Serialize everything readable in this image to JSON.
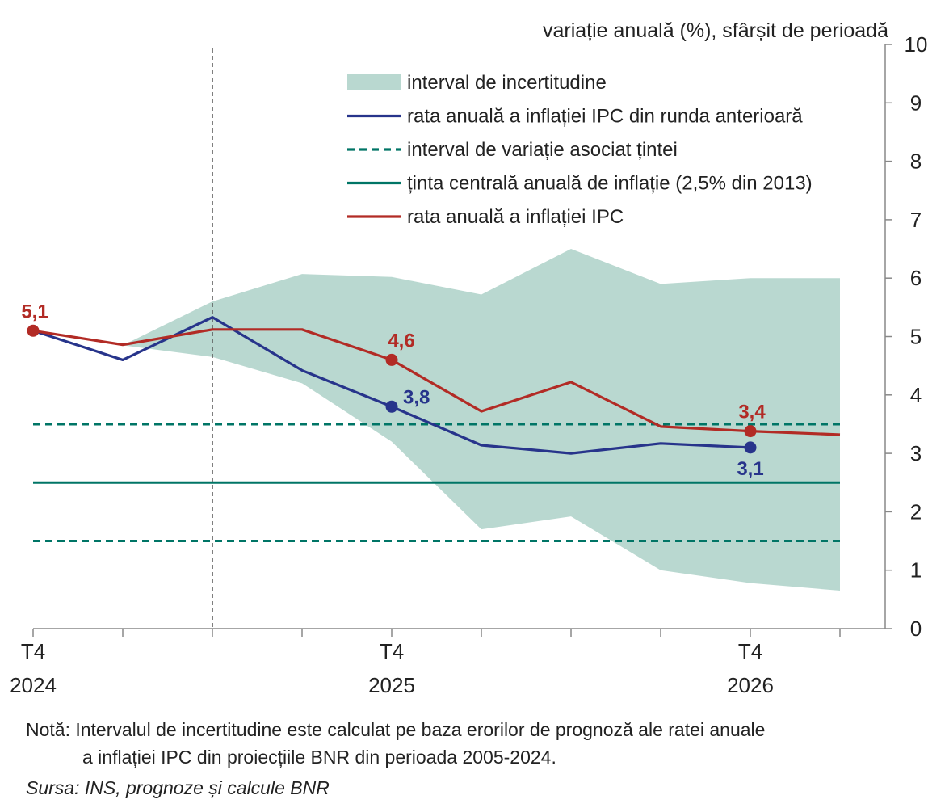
{
  "chart_data": {
    "type": "line",
    "ylabel": "variație anuală (%), sfârșit de perioadă",
    "ylim": [
      0,
      10
    ],
    "y_ticks": [
      "0",
      "1",
      "2",
      "3",
      "4",
      "5",
      "6",
      "7",
      "8",
      "9",
      "10"
    ],
    "x_ticks": [
      {
        "quarter": "T4",
        "year": "2024"
      },
      {
        "quarter": "T4",
        "year": "2025"
      },
      {
        "quarter": "T4",
        "year": "2026"
      }
    ],
    "x_periods": [
      "T4 2024",
      "T1 2025",
      "T2 2025",
      "T3 2025",
      "T4 2025",
      "T1 2026",
      "T2 2026",
      "T3 2026",
      "T4 2026",
      "T1 2027"
    ],
    "projection_start": "T2 2025",
    "legend_position": "top",
    "legend": [
      {
        "label": "interval de incertitudine",
        "style": "band",
        "color": "#b9d8d0"
      },
      {
        "label": "rata anuală a inflației IPC din runda anterioară",
        "style": "solid",
        "color": "#27348b"
      },
      {
        "label": "interval de variație asociat țintei",
        "style": "dashed",
        "color": "#007566"
      },
      {
        "label": "ținta centrală anuală de inflație (2,5% din 2013)",
        "style": "solid",
        "color": "#007566"
      },
      {
        "label": "rata anuală a inflației IPC",
        "style": "solid",
        "color": "#b22b25"
      }
    ],
    "uncertainty_band": {
      "x_index": [
        1,
        2,
        3,
        4,
        5,
        6,
        7,
        8,
        9
      ],
      "upper": [
        4.85,
        5.6,
        6.07,
        6.02,
        5.72,
        6.5,
        5.9,
        6.0,
        6.0
      ],
      "lower": [
        4.85,
        4.65,
        4.2,
        3.2,
        1.7,
        1.92,
        1.0,
        0.78,
        0.65
      ]
    },
    "series": [
      {
        "name": "rata anuală a inflației IPC din runda anterioară",
        "color": "#27348b",
        "x_index": [
          0,
          1,
          2,
          3,
          4,
          5,
          6,
          7,
          8
        ],
        "values": [
          5.1,
          4.6,
          5.33,
          4.42,
          3.8,
          3.14,
          3.0,
          3.17,
          3.1
        ],
        "markers": [
          {
            "index": 4,
            "label": "3,8"
          },
          {
            "index": 8,
            "label": "3,1"
          }
        ]
      },
      {
        "name": "rata anuală a inflației IPC",
        "color": "#b22b25",
        "x_index": [
          0,
          1,
          2,
          3,
          4,
          5,
          6,
          7,
          8,
          9
        ],
        "values": [
          5.1,
          4.86,
          5.12,
          5.12,
          4.6,
          3.72,
          4.22,
          3.46,
          3.38,
          3.32
        ],
        "markers": [
          {
            "index": 0,
            "label": "5,1"
          },
          {
            "index": 4,
            "label": "4,6"
          },
          {
            "index": 8,
            "label": "3,4"
          }
        ]
      }
    ],
    "reference_lines": [
      {
        "value": 3.5,
        "style": "dashed",
        "color": "#007566"
      },
      {
        "value": 2.5,
        "style": "solid",
        "color": "#007566"
      },
      {
        "value": 1.5,
        "style": "dashed",
        "color": "#007566"
      }
    ]
  },
  "footnote": {
    "note_line1": "Notă: Intervalul de incertitudine este calculat pe baza erorilor de prognoză ale ratei anuale",
    "note_line2": "a inflației IPC din proiecțiile BNR din perioada 2005-2024.",
    "source": "Sursa: INS, prognoze și calcule BNR"
  }
}
